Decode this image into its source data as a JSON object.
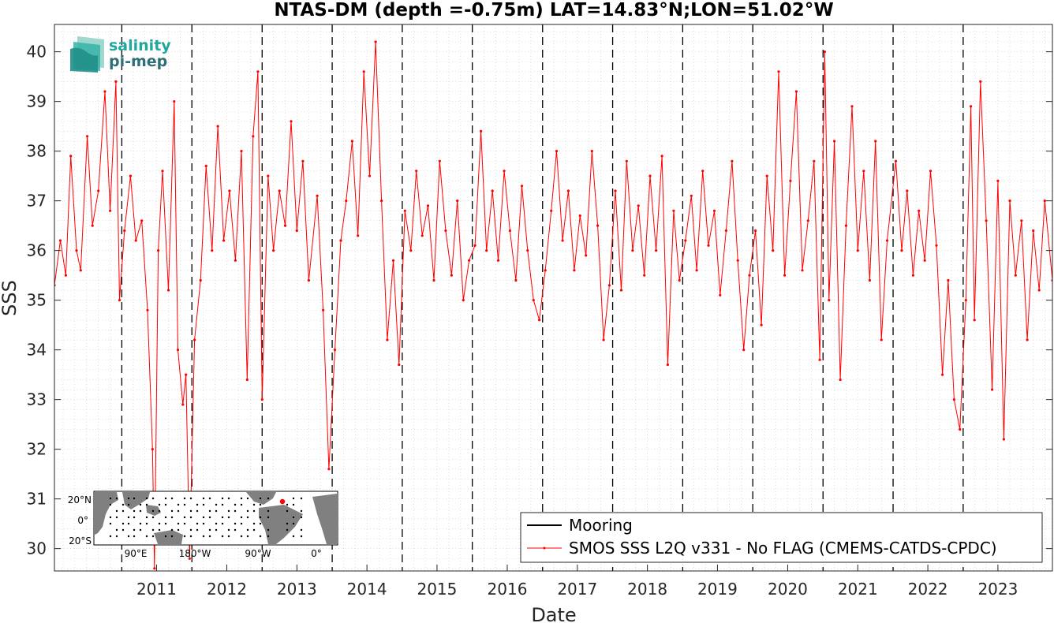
{
  "chart_data": {
    "type": "line",
    "title": "NTAS-DM (depth =-0.75m) LAT=14.83°N;LON=51.02°W",
    "xlabel": "Date",
    "ylabel": "SSS",
    "xlim": [
      "2010-01-15",
      "2024-04-10"
    ],
    "ylim": [
      29.55,
      40.55
    ],
    "x_ticks": [
      "2011",
      "2012",
      "2013",
      "2014",
      "2015",
      "2016",
      "2017",
      "2018",
      "2019",
      "2020",
      "2021",
      "2022",
      "2023"
    ],
    "y_ticks": [
      30,
      31,
      32,
      33,
      34,
      35,
      36,
      37,
      38,
      39,
      40
    ],
    "year_boundaries": [
      "2011-01-01",
      "2012-01-01",
      "2013-01-01",
      "2014-01-01",
      "2015-01-01",
      "2016-01-01",
      "2017-01-01",
      "2018-01-01",
      "2019-01-01",
      "2020-01-01",
      "2021-01-01",
      "2022-01-01",
      "2023-01-01"
    ],
    "grid": "minor dotted",
    "legend_position": "bottom-right",
    "series": [
      {
        "name": "Mooring",
        "color": "#000000",
        "points": []
      },
      {
        "name": "SMOS SSS L2Q v331 - No FLAG  (CMEMS-CATDS-CPDC)",
        "color": "#ff0000",
        "marker": "dot",
        "points": [
          [
            "2010-01-15",
            35.3
          ],
          [
            "2010-02-15",
            36.2
          ],
          [
            "2010-03-15",
            35.5
          ],
          [
            "2010-04-10",
            37.9
          ],
          [
            "2010-05-10",
            36.0
          ],
          [
            "2010-06-01",
            35.6
          ],
          [
            "2010-07-05",
            38.3
          ],
          [
            "2010-08-01",
            36.5
          ],
          [
            "2010-09-01",
            37.2
          ],
          [
            "2010-10-05",
            39.2
          ],
          [
            "2010-11-01",
            36.8
          ],
          [
            "2010-12-01",
            39.4
          ],
          [
            "2010-12-20",
            35.0
          ],
          [
            "2011-01-15",
            36.4
          ],
          [
            "2011-02-15",
            37.5
          ],
          [
            "2011-03-15",
            36.2
          ],
          [
            "2011-04-15",
            36.6
          ],
          [
            "2011-05-15",
            34.8
          ],
          [
            "2011-06-10",
            32.0
          ],
          [
            "2011-06-20",
            29.6
          ],
          [
            "2011-07-10",
            36.0
          ],
          [
            "2011-08-01",
            37.6
          ],
          [
            "2011-09-01",
            35.2
          ],
          [
            "2011-10-01",
            39.0
          ],
          [
            "2011-10-20",
            34.0
          ],
          [
            "2011-11-15",
            32.9
          ],
          [
            "2011-12-01",
            33.5
          ],
          [
            "2011-12-20",
            29.8
          ],
          [
            "2012-01-15",
            34.2
          ],
          [
            "2012-02-15",
            35.4
          ],
          [
            "2012-03-15",
            37.7
          ],
          [
            "2012-04-15",
            36.0
          ],
          [
            "2012-05-15",
            38.5
          ],
          [
            "2012-06-15",
            36.2
          ],
          [
            "2012-07-15",
            37.2
          ],
          [
            "2012-08-15",
            35.8
          ],
          [
            "2012-09-15",
            38.0
          ],
          [
            "2012-10-15",
            33.4
          ],
          [
            "2012-11-15",
            38.3
          ],
          [
            "2012-12-10",
            39.6
          ],
          [
            "2013-01-01",
            33.0
          ],
          [
            "2013-02-01",
            37.5
          ],
          [
            "2013-03-01",
            36.0
          ],
          [
            "2013-04-01",
            37.2
          ],
          [
            "2013-05-01",
            36.5
          ],
          [
            "2013-06-01",
            38.6
          ],
          [
            "2013-07-01",
            36.4
          ],
          [
            "2013-08-01",
            37.8
          ],
          [
            "2013-09-01",
            35.4
          ],
          [
            "2013-10-15",
            37.1
          ],
          [
            "2013-11-15",
            34.8
          ],
          [
            "2013-12-15",
            31.6
          ],
          [
            "2014-01-15",
            34.0
          ],
          [
            "2014-02-15",
            36.2
          ],
          [
            "2014-03-15",
            37.0
          ],
          [
            "2014-04-15",
            38.2
          ],
          [
            "2014-05-15",
            36.3
          ],
          [
            "2014-06-15",
            39.6
          ],
          [
            "2014-07-15",
            37.5
          ],
          [
            "2014-08-15",
            40.2
          ],
          [
            "2014-09-15",
            37.0
          ],
          [
            "2014-10-15",
            34.2
          ],
          [
            "2014-11-15",
            35.8
          ],
          [
            "2014-12-15",
            33.7
          ],
          [
            "2015-01-15",
            36.8
          ],
          [
            "2015-02-15",
            36.0
          ],
          [
            "2015-03-15",
            37.6
          ],
          [
            "2015-04-15",
            36.3
          ],
          [
            "2015-05-15",
            36.9
          ],
          [
            "2015-06-15",
            35.4
          ],
          [
            "2015-07-15",
            37.8
          ],
          [
            "2015-08-15",
            36.4
          ],
          [
            "2015-09-15",
            35.5
          ],
          [
            "2015-10-15",
            37.0
          ],
          [
            "2015-11-15",
            35.0
          ],
          [
            "2015-12-15",
            35.8
          ],
          [
            "2016-01-15",
            36.1
          ],
          [
            "2016-02-15",
            38.4
          ],
          [
            "2016-03-15",
            36.0
          ],
          [
            "2016-04-15",
            37.2
          ],
          [
            "2016-05-15",
            35.8
          ],
          [
            "2016-06-15",
            37.6
          ],
          [
            "2016-07-15",
            36.4
          ],
          [
            "2016-08-15",
            35.4
          ],
          [
            "2016-09-15",
            37.3
          ],
          [
            "2016-10-15",
            36.0
          ],
          [
            "2016-11-15",
            35.0
          ],
          [
            "2016-12-15",
            34.6
          ],
          [
            "2017-01-15",
            35.6
          ],
          [
            "2017-02-15",
            36.8
          ],
          [
            "2017-03-15",
            38.0
          ],
          [
            "2017-04-15",
            36.2
          ],
          [
            "2017-05-15",
            37.2
          ],
          [
            "2017-06-15",
            35.6
          ],
          [
            "2017-07-15",
            36.7
          ],
          [
            "2017-08-15",
            35.9
          ],
          [
            "2017-09-15",
            38.0
          ],
          [
            "2017-10-15",
            36.5
          ],
          [
            "2017-11-15",
            34.2
          ],
          [
            "2017-12-15",
            35.3
          ],
          [
            "2018-01-15",
            37.2
          ],
          [
            "2018-02-15",
            35.2
          ],
          [
            "2018-03-15",
            37.8
          ],
          [
            "2018-04-15",
            36.0
          ],
          [
            "2018-05-15",
            36.9
          ],
          [
            "2018-06-15",
            35.5
          ],
          [
            "2018-07-15",
            37.5
          ],
          [
            "2018-08-15",
            36.0
          ],
          [
            "2018-09-15",
            37.9
          ],
          [
            "2018-10-15",
            33.7
          ],
          [
            "2018-11-15",
            36.8
          ],
          [
            "2018-12-15",
            35.4
          ],
          [
            "2019-01-15",
            36.2
          ],
          [
            "2019-02-15",
            37.1
          ],
          [
            "2019-03-15",
            35.6
          ],
          [
            "2019-04-15",
            37.6
          ],
          [
            "2019-05-15",
            36.1
          ],
          [
            "2019-06-15",
            36.8
          ],
          [
            "2019-07-15",
            35.1
          ],
          [
            "2019-08-15",
            36.4
          ],
          [
            "2019-09-15",
            37.8
          ],
          [
            "2019-10-15",
            35.8
          ],
          [
            "2019-11-15",
            34.0
          ],
          [
            "2019-12-15",
            35.5
          ],
          [
            "2020-01-15",
            36.4
          ],
          [
            "2020-02-15",
            34.5
          ],
          [
            "2020-03-15",
            37.5
          ],
          [
            "2020-04-15",
            36.0
          ],
          [
            "2020-05-15",
            39.6
          ],
          [
            "2020-06-15",
            35.5
          ],
          [
            "2020-07-15",
            37.4
          ],
          [
            "2020-08-15",
            39.2
          ],
          [
            "2020-09-15",
            35.6
          ],
          [
            "2020-10-15",
            36.6
          ],
          [
            "2020-11-15",
            37.8
          ],
          [
            "2020-12-15",
            33.8
          ],
          [
            "2021-01-10",
            40.0
          ],
          [
            "2021-02-01",
            35.0
          ],
          [
            "2021-03-01",
            38.2
          ],
          [
            "2021-04-01",
            33.4
          ],
          [
            "2021-05-01",
            36.5
          ],
          [
            "2021-06-01",
            38.9
          ],
          [
            "2021-07-01",
            36.0
          ],
          [
            "2021-08-01",
            37.6
          ],
          [
            "2021-09-01",
            35.4
          ],
          [
            "2021-10-01",
            38.2
          ],
          [
            "2021-11-01",
            34.2
          ],
          [
            "2021-12-01",
            36.2
          ],
          [
            "2022-01-15",
            37.8
          ],
          [
            "2022-02-15",
            36.0
          ],
          [
            "2022-03-15",
            37.2
          ],
          [
            "2022-04-15",
            35.5
          ],
          [
            "2022-05-15",
            36.8
          ],
          [
            "2022-06-15",
            35.8
          ],
          [
            "2022-07-15",
            37.6
          ],
          [
            "2022-08-15",
            36.1
          ],
          [
            "2022-09-15",
            33.5
          ],
          [
            "2022-10-15",
            35.4
          ],
          [
            "2022-11-15",
            33.0
          ],
          [
            "2022-12-15",
            32.4
          ],
          [
            "2023-01-15",
            35.0
          ],
          [
            "2023-02-10",
            38.9
          ],
          [
            "2023-03-01",
            34.6
          ],
          [
            "2023-04-01",
            39.4
          ],
          [
            "2023-05-01",
            36.6
          ],
          [
            "2023-06-01",
            33.2
          ],
          [
            "2023-07-01",
            37.4
          ],
          [
            "2023-08-01",
            32.2
          ],
          [
            "2023-09-01",
            37.0
          ],
          [
            "2023-10-01",
            35.5
          ],
          [
            "2023-11-01",
            36.6
          ],
          [
            "2023-12-01",
            34.2
          ],
          [
            "2024-01-01",
            36.4
          ],
          [
            "2024-02-01",
            35.2
          ],
          [
            "2024-03-01",
            37.0
          ],
          [
            "2024-04-10",
            35.4
          ]
        ]
      }
    ]
  },
  "inset_map": {
    "lat_labels": [
      "20°N",
      "0°",
      "20°S"
    ],
    "lon_labels": [
      "90°E",
      "180°W",
      "90°W",
      "0°"
    ],
    "land_color": "#808080",
    "ocean_color": "#ffffff",
    "marker_color": "#ff0000"
  },
  "logo": {
    "line1": "salinity",
    "line2": "pi-mep",
    "colors": [
      "#1fa89b",
      "#2f6f78"
    ]
  }
}
